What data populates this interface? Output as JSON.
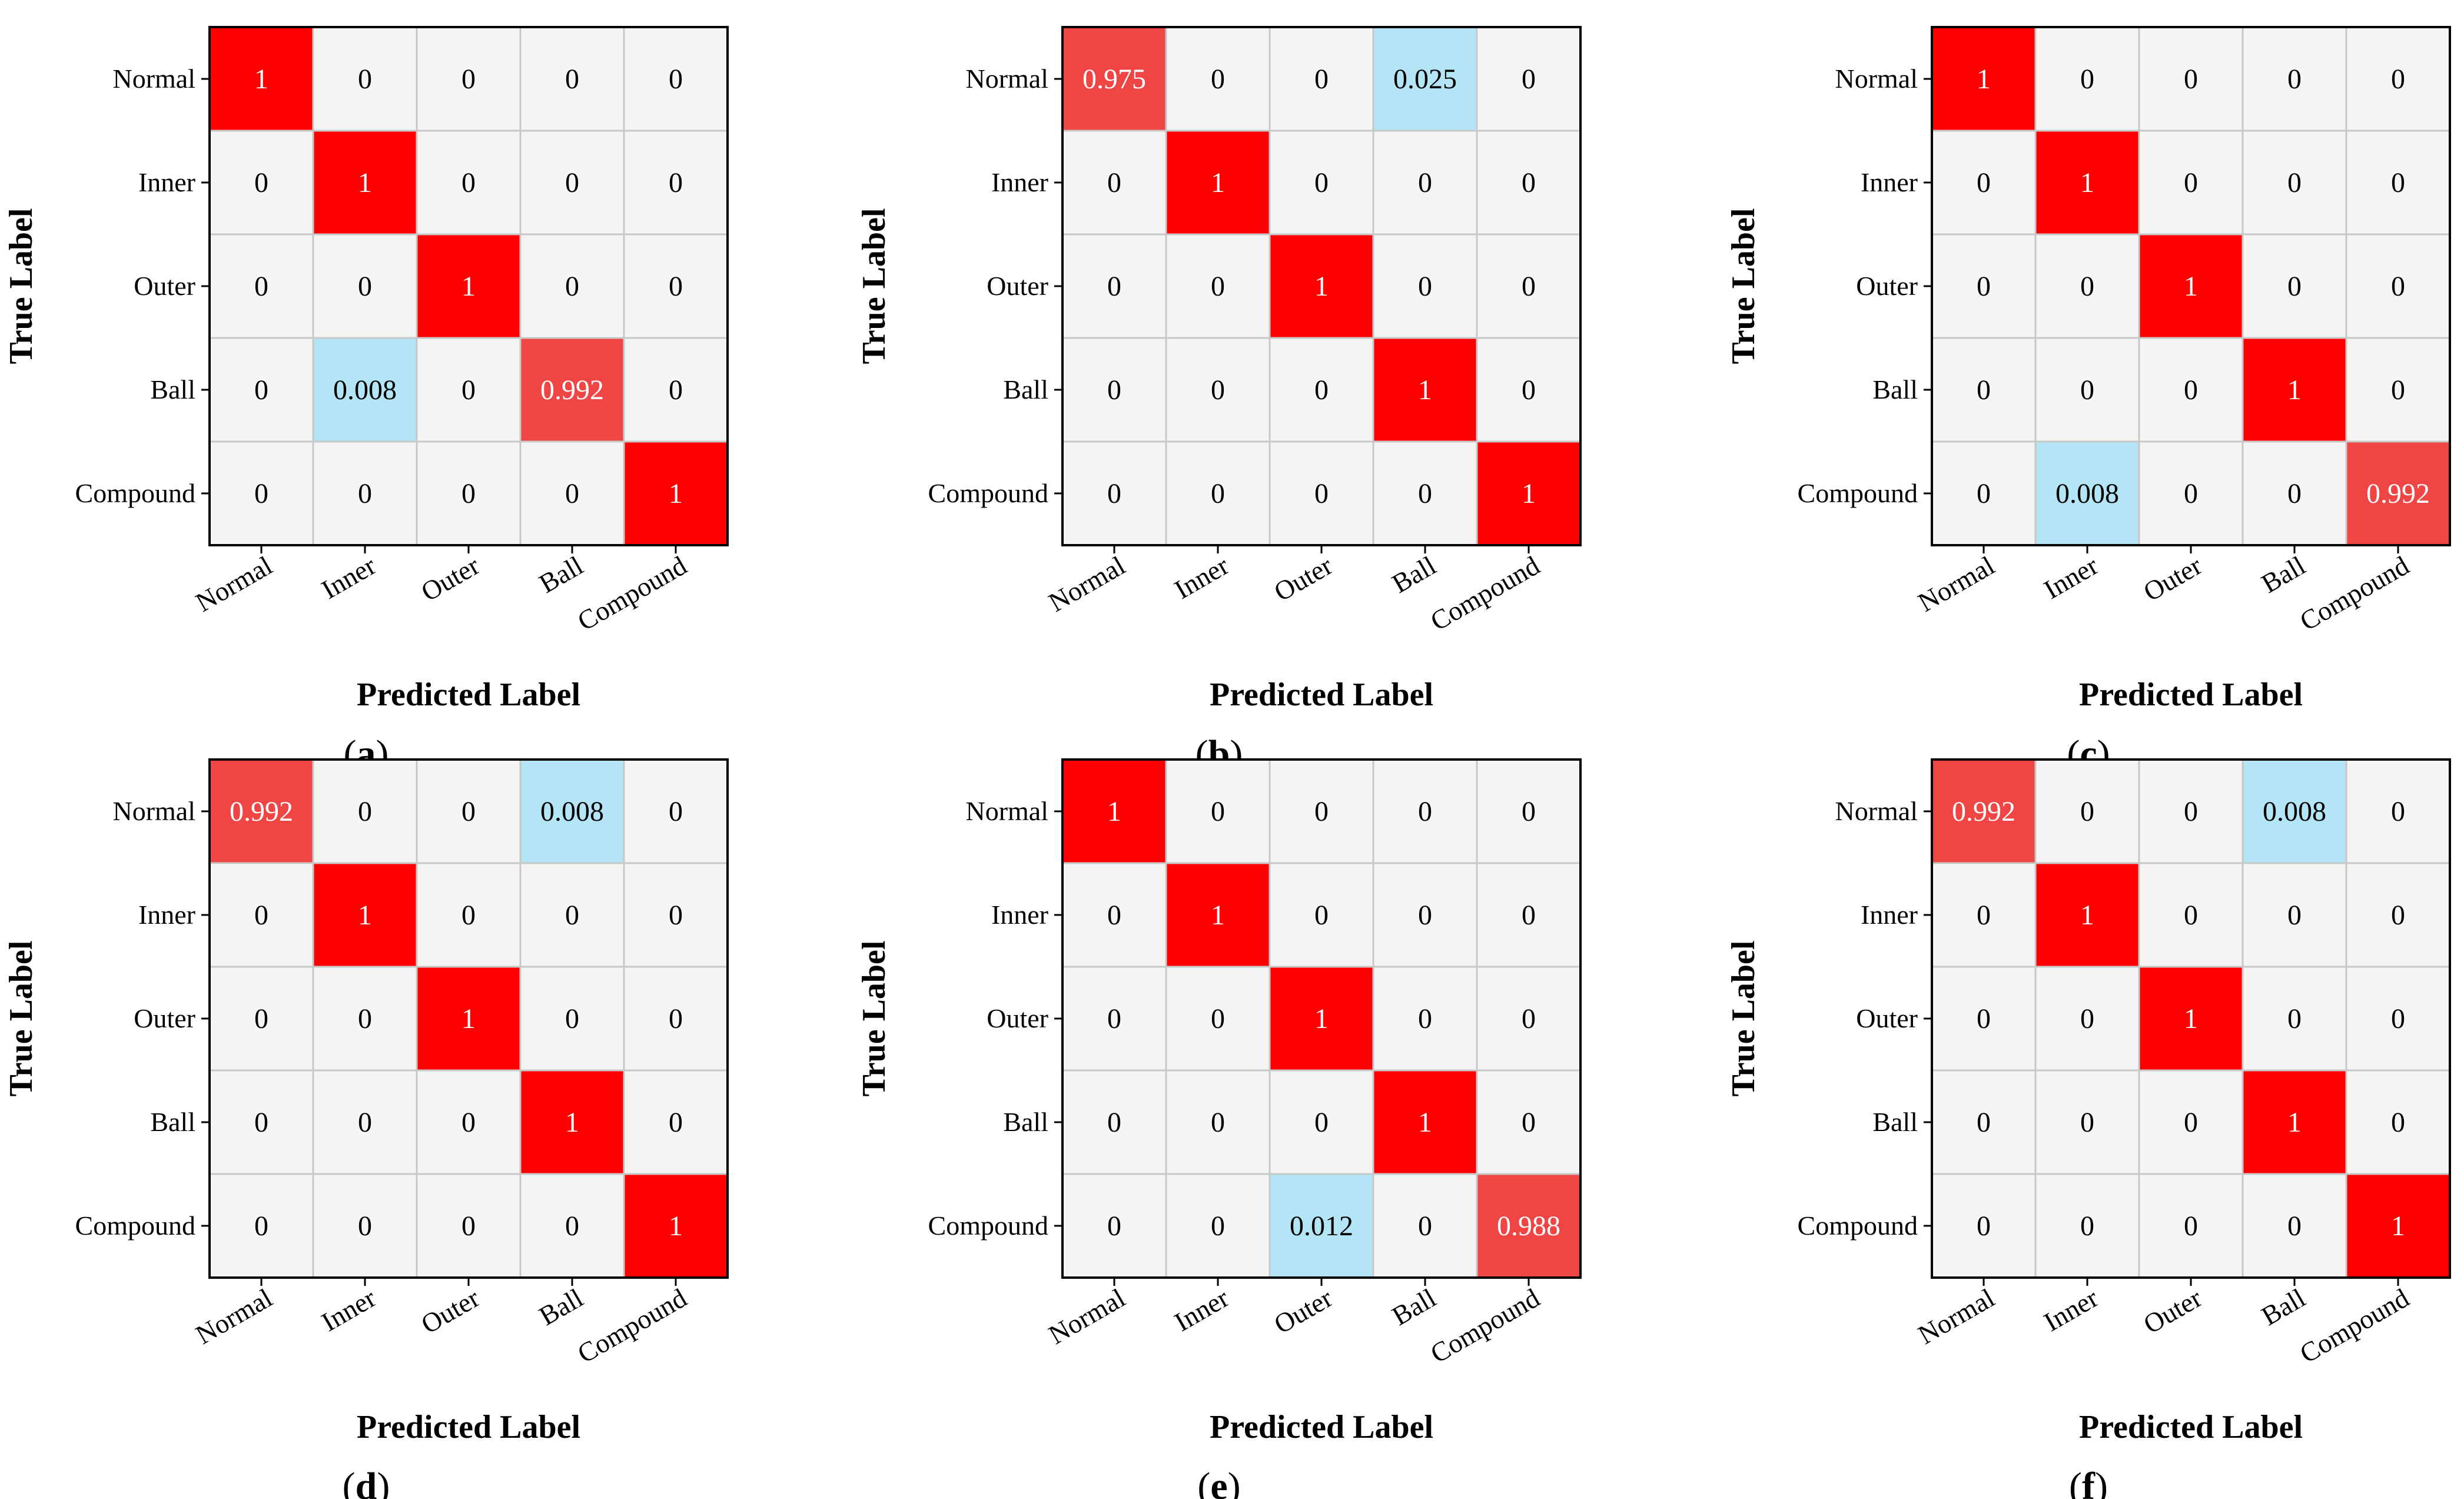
{
  "figure": {
    "colors": {
      "high": "#ff0000",
      "mid_high": "#f04545",
      "low": "#b3e5f7",
      "zero": "#f5f5f5",
      "grid": "#c8c8c8",
      "frame": "#000000",
      "text_dark": "#000000",
      "text_light": "#ffffff"
    }
  },
  "chart_data": [
    {
      "panel": "a",
      "type": "heatmap",
      "xlabel": "Predicted Label",
      "ylabel": "True Label",
      "x_categories": [
        "Normal",
        "Inner",
        "Outer",
        "Ball",
        "Compound"
      ],
      "y_categories": [
        "Normal",
        "Inner",
        "Outer",
        "Ball",
        "Compound"
      ],
      "values": [
        [
          "1",
          "0",
          "0",
          "0",
          "0"
        ],
        [
          "0",
          "1",
          "0",
          "0",
          "0"
        ],
        [
          "0",
          "0",
          "1",
          "0",
          "0"
        ],
        [
          "0",
          "0.008",
          "0",
          "0.992",
          "0"
        ],
        [
          "0",
          "0",
          "0",
          "0",
          "1"
        ]
      ]
    },
    {
      "panel": "b",
      "type": "heatmap",
      "xlabel": "Predicted Label",
      "ylabel": "True Label",
      "x_categories": [
        "Normal",
        "Inner",
        "Outer",
        "Ball",
        "Compound"
      ],
      "y_categories": [
        "Normal",
        "Inner",
        "Outer",
        "Ball",
        "Compound"
      ],
      "values": [
        [
          "0.975",
          "0",
          "0",
          "0.025",
          "0"
        ],
        [
          "0",
          "1",
          "0",
          "0",
          "0"
        ],
        [
          "0",
          "0",
          "1",
          "0",
          "0"
        ],
        [
          "0",
          "0",
          "0",
          "1",
          "0"
        ],
        [
          "0",
          "0",
          "0",
          "0",
          "1"
        ]
      ]
    },
    {
      "panel": "c",
      "type": "heatmap",
      "xlabel": "Predicted Label",
      "ylabel": "True Label",
      "x_categories": [
        "Normal",
        "Inner",
        "Outer",
        "Ball",
        "Compound"
      ],
      "y_categories": [
        "Normal",
        "Inner",
        "Outer",
        "Ball",
        "Compound"
      ],
      "values": [
        [
          "1",
          "0",
          "0",
          "0",
          "0"
        ],
        [
          "0",
          "1",
          "0",
          "0",
          "0"
        ],
        [
          "0",
          "0",
          "1",
          "0",
          "0"
        ],
        [
          "0",
          "0",
          "0",
          "1",
          "0"
        ],
        [
          "0",
          "0.008",
          "0",
          "0",
          "0.992"
        ]
      ]
    },
    {
      "panel": "d",
      "type": "heatmap",
      "xlabel": "Predicted Label",
      "ylabel": "True Label",
      "x_categories": [
        "Normal",
        "Inner",
        "Outer",
        "Ball",
        "Compound"
      ],
      "y_categories": [
        "Normal",
        "Inner",
        "Outer",
        "Ball",
        "Compound"
      ],
      "values": [
        [
          "0.992",
          "0",
          "0",
          "0.008",
          "0"
        ],
        [
          "0",
          "1",
          "0",
          "0",
          "0"
        ],
        [
          "0",
          "0",
          "1",
          "0",
          "0"
        ],
        [
          "0",
          "0",
          "0",
          "1",
          "0"
        ],
        [
          "0",
          "0",
          "0",
          "0",
          "1"
        ]
      ]
    },
    {
      "panel": "e",
      "type": "heatmap",
      "xlabel": "Predicted Label",
      "ylabel": "True Label",
      "x_categories": [
        "Normal",
        "Inner",
        "Outer",
        "Ball",
        "Compound"
      ],
      "y_categories": [
        "Normal",
        "Inner",
        "Outer",
        "Ball",
        "Compound"
      ],
      "values": [
        [
          "1",
          "0",
          "0",
          "0",
          "0"
        ],
        [
          "0",
          "1",
          "0",
          "0",
          "0"
        ],
        [
          "0",
          "0",
          "1",
          "0",
          "0"
        ],
        [
          "0",
          "0",
          "0",
          "1",
          "0"
        ],
        [
          "0",
          "0",
          "0.012",
          "0",
          "0.988"
        ]
      ]
    },
    {
      "panel": "f",
      "type": "heatmap",
      "xlabel": "Predicted Label",
      "ylabel": "True Label",
      "x_categories": [
        "Normal",
        "Inner",
        "Outer",
        "Ball",
        "Compound"
      ],
      "y_categories": [
        "Normal",
        "Inner",
        "Outer",
        "Ball",
        "Compound"
      ],
      "values": [
        [
          "0.992",
          "0",
          "0",
          "0.008",
          "0"
        ],
        [
          "0",
          "1",
          "0",
          "0",
          "0"
        ],
        [
          "0",
          "0",
          "1",
          "0",
          "0"
        ],
        [
          "0",
          "0",
          "0",
          "1",
          "0"
        ],
        [
          "0",
          "0",
          "0",
          "0",
          "1"
        ]
      ]
    }
  ]
}
